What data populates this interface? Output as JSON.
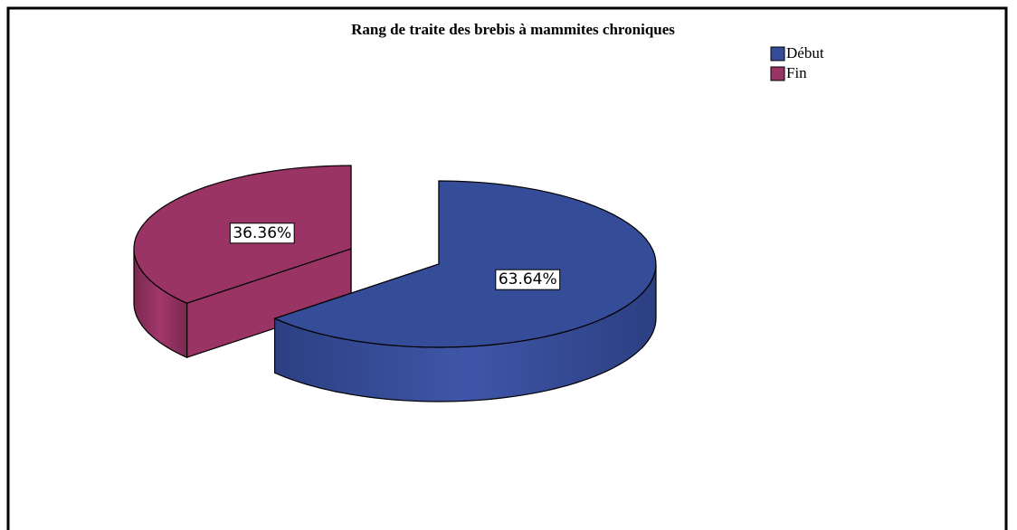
{
  "chart_data": {
    "type": "pie3d",
    "title": "Rang de traite des brebis à mammites chroniques",
    "categories": [
      "Début",
      "Fin"
    ],
    "values": [
      63.64,
      36.36
    ],
    "value_labels": [
      "63.64%",
      "36.36%"
    ],
    "colors": [
      "#354c98",
      "#993465"
    ],
    "legend": "upper right"
  }
}
